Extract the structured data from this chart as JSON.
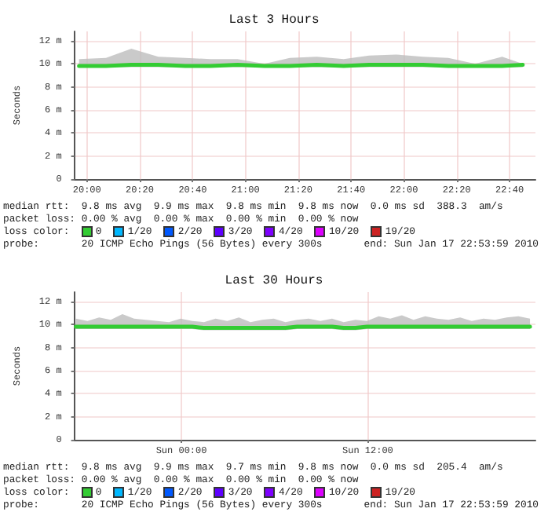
{
  "chart_data": [
    {
      "type": "line",
      "title": "Last 3 Hours",
      "ylabel": "Seconds",
      "grid": true,
      "marker": "none",
      "line_style": "solid",
      "x": [
        19.95,
        20.12,
        20.28,
        20.45,
        20.62,
        20.78,
        20.95,
        21.12,
        21.28,
        21.45,
        21.62,
        21.78,
        21.95,
        22.12,
        22.28,
        22.45,
        22.62,
        22.75
      ],
      "xlim": [
        19.92,
        22.83
      ],
      "xticks": [
        {
          "value": 20,
          "label": "20:00"
        },
        {
          "value": 20.333,
          "label": "20:20"
        },
        {
          "value": 20.667,
          "label": "20:40"
        },
        {
          "value": 21,
          "label": "21:00"
        },
        {
          "value": 21.333,
          "label": "21:20"
        },
        {
          "value": 21.667,
          "label": "21:40"
        },
        {
          "value": 22,
          "label": "22:00"
        },
        {
          "value": 22.333,
          "label": "22:20"
        },
        {
          "value": 22.667,
          "label": "22:40"
        }
      ],
      "ylim": [
        0,
        12.8
      ],
      "yticks": [
        0,
        {
          "value": 2,
          "label": "2 m"
        },
        {
          "value": 4,
          "label": "4 m"
        },
        {
          "value": 6,
          "label": "6 m"
        },
        {
          "value": 8,
          "label": "8 m"
        },
        {
          "value": 10,
          "label": "10 m"
        },
        {
          "value": 12,
          "label": "12 m"
        }
      ],
      "series": [
        {
          "color": "#33cc33",
          "values": [
            9.8,
            9.8,
            9.9,
            9.9,
            9.8,
            9.8,
            9.9,
            9.8,
            9.8,
            9.9,
            9.8,
            9.9,
            9.9,
            9.9,
            9.8,
            9.8,
            9.8,
            9.9
          ],
          "lower": [
            9.7,
            9.7,
            9.7,
            9.7,
            9.7,
            9.7,
            9.7,
            9.7,
            9.7,
            9.7,
            9.7,
            9.7,
            9.7,
            9.7,
            9.7,
            9.7,
            9.7,
            9.7
          ],
          "upper": [
            10.4,
            10.5,
            11.3,
            10.6,
            10.5,
            10.4,
            10.4,
            10.0,
            10.5,
            10.6,
            10.4,
            10.7,
            10.8,
            10.6,
            10.5,
            10.0,
            10.6,
            10.0
          ]
        }
      ],
      "annotations": [
        "median rtt:  9.8 ms avg  9.9 ms max  9.8 ms min  9.8 ms now  0.0 ms sd  388.3  am/s",
        "packet loss: 0.00 % avg  0.00 % max  0.00 % min  0.00 % now",
        "loss color:  0  1/20  2/20  3/20  4/20  10/20  19/20",
        "probe:       20 ICMP Echo Pings (56 Bytes) every 300s",
        "end: Sun Jan 17 22:53:59 2010"
      ]
    },
    {
      "type": "line",
      "title": "Last 30 Hours",
      "ylabel": "Seconds",
      "grid": true,
      "marker": "none",
      "line_style": "solid",
      "x": [
        "2010-01-16T17:12",
        "2010-01-16T17:57",
        "2010-01-16T18:42",
        "2010-01-16T19:27",
        "2010-01-16T20:12",
        "2010-01-16T20:57",
        "2010-01-16T21:42",
        "2010-01-16T22:27",
        "2010-01-16T23:12",
        "2010-01-16T23:57",
        "2010-01-17T00:42",
        "2010-01-17T01:27",
        "2010-01-17T02:12",
        "2010-01-17T02:57",
        "2010-01-17T03:42",
        "2010-01-17T04:27",
        "2010-01-17T05:12",
        "2010-01-17T05:57",
        "2010-01-17T06:42",
        "2010-01-17T07:27",
        "2010-01-17T08:12",
        "2010-01-17T08:57",
        "2010-01-17T09:42",
        "2010-01-17T10:27",
        "2010-01-17T11:12",
        "2010-01-17T11:57",
        "2010-01-17T12:42",
        "2010-01-17T13:27",
        "2010-01-17T14:12",
        "2010-01-17T14:57",
        "2010-01-17T15:42",
        "2010-01-17T16:27",
        "2010-01-17T17:12",
        "2010-01-17T17:57",
        "2010-01-17T18:42",
        "2010-01-17T19:27",
        "2010-01-17T20:12",
        "2010-01-17T20:57",
        "2010-01-17T21:42",
        "2010-01-17T22:27"
      ],
      "xlim": [
        "2010-01-16T17:06",
        "2010-01-17T22:48"
      ],
      "xticks": [
        {
          "value": "2010-01-17T00:00",
          "label": "Sun 00:00"
        },
        {
          "value": "2010-01-17T12:00",
          "label": "Sun 12:00"
        }
      ],
      "ylim": [
        0,
        12.8
      ],
      "yticks": [
        0,
        {
          "value": 2,
          "label": "2 m"
        },
        {
          "value": 4,
          "label": "4 m"
        },
        {
          "value": 6,
          "label": "6 m"
        },
        {
          "value": 8,
          "label": "8 m"
        },
        {
          "value": 10,
          "label": "10 m"
        },
        {
          "value": 12,
          "label": "12 m"
        }
      ],
      "series": [
        {
          "color": "#33cc33",
          "values": [
            9.8,
            9.8,
            9.8,
            9.8,
            9.8,
            9.8,
            9.8,
            9.8,
            9.8,
            9.8,
            9.8,
            9.7,
            9.7,
            9.7,
            9.7,
            9.7,
            9.7,
            9.7,
            9.7,
            9.8,
            9.8,
            9.8,
            9.8,
            9.7,
            9.7,
            9.8,
            9.8,
            9.8,
            9.8,
            9.8,
            9.8,
            9.8,
            9.8,
            9.8,
            9.8,
            9.8,
            9.8,
            9.8,
            9.8,
            9.8
          ],
          "lower": [
            9.6,
            9.6,
            9.6,
            9.6,
            9.6,
            9.6,
            9.6,
            9.6,
            9.6,
            9.6,
            9.6,
            9.5,
            9.5,
            9.5,
            9.5,
            9.5,
            9.5,
            9.5,
            9.5,
            9.6,
            9.6,
            9.6,
            9.6,
            9.5,
            9.5,
            9.6,
            9.6,
            9.6,
            9.6,
            9.6,
            9.6,
            9.6,
            9.6,
            9.6,
            9.6,
            9.6,
            9.6,
            9.6,
            9.6,
            9.6
          ],
          "upper": [
            10.5,
            10.3,
            10.6,
            10.4,
            10.9,
            10.5,
            10.4,
            10.3,
            10.2,
            10.5,
            10.3,
            10.2,
            10.5,
            10.3,
            10.6,
            10.2,
            10.4,
            10.5,
            10.2,
            10.4,
            10.5,
            10.3,
            10.5,
            10.2,
            10.4,
            10.3,
            10.7,
            10.5,
            10.8,
            10.4,
            10.7,
            10.5,
            10.4,
            10.6,
            10.3,
            10.5,
            10.4,
            10.6,
            10.7,
            10.5
          ]
        }
      ],
      "annotations": [
        "median rtt:  9.8 ms avg  9.9 ms max  9.7 ms min  9.8 ms now  0.0 ms sd  205.4  am/s",
        "packet loss: 0.00 % avg  0.00 % max  0.00 % min  0.00 % now",
        "loss color:  0  1/20  2/20  3/20  4/20  10/20  19/20",
        "probe:       20 ICMP Echo Pings (56 Bytes) every 300s",
        "end: Sun Jan 17 22:53:59 2010"
      ]
    }
  ]
}
